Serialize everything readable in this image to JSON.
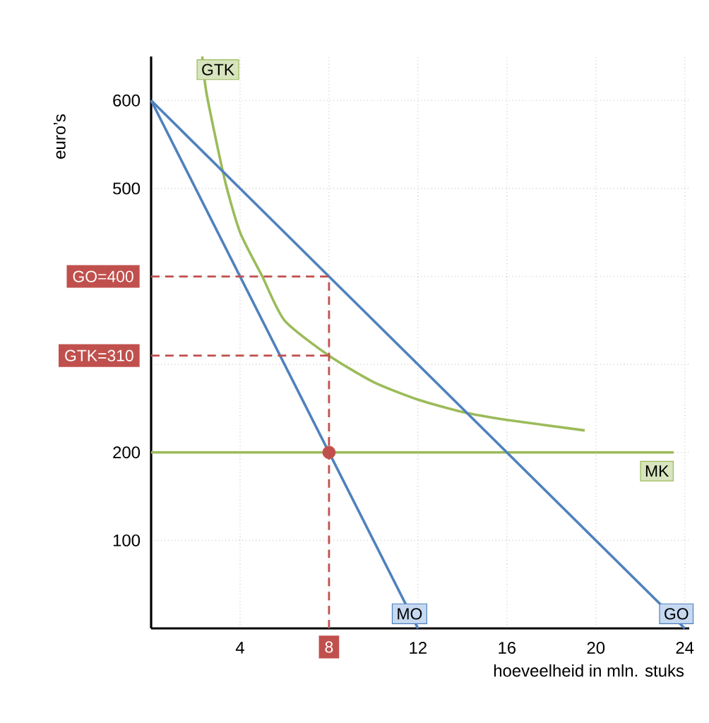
{
  "chart_data": {
    "type": "line",
    "xlabel": "hoeveelheid in mln. stuks",
    "ylabel": "euro’s",
    "xlim": [
      0,
      24.2
    ],
    "ylim": [
      0,
      650
    ],
    "xticks": [
      4,
      {
        "value": 8,
        "label": null
      },
      12,
      16,
      20,
      24
    ],
    "yticks": [
      100,
      200,
      {
        "value": 300,
        "label": null
      },
      {
        "value": 400,
        "label": null
      },
      500,
      600
    ],
    "grid": true,
    "marker": "none",
    "series": [
      {
        "name": "GTK",
        "color": "#9bbb59",
        "x": [
          2.3,
          2.5,
          3.3,
          4,
          5,
          6,
          8,
          10,
          12,
          14,
          16,
          19.5
        ],
        "values": [
          650,
          607,
          511,
          450,
          400,
          350,
          310,
          280,
          260,
          246,
          237,
          225
        ]
      },
      {
        "name": "MK",
        "color": "#9bbb59",
        "x": [
          0,
          23.5
        ],
        "values": [
          200,
          200
        ]
      },
      {
        "name": "GO",
        "color": "#4f81bd",
        "x": [
          0,
          24
        ],
        "values": [
          600,
          0
        ]
      },
      {
        "name": "MO",
        "color": "#4f81bd",
        "x": [
          0,
          12
        ],
        "values": [
          600,
          0
        ]
      },
      {
        "type": "scatter",
        "color": "#c0504d",
        "marker": "circle",
        "x": [
          8
        ],
        "values": [
          200
        ]
      }
    ],
    "ref_lines": [
      {
        "axis": "y",
        "value": 400,
        "label": "GO=400",
        "color": "#c0504d",
        "line_style": "dashed"
      },
      {
        "axis": "y",
        "value": 310,
        "label": "GTK=310",
        "color": "#c0504d",
        "line_style": "dashed"
      },
      {
        "axis": "x",
        "value": 8,
        "label": "8",
        "color": "#c0504d",
        "line_style": "dashed"
      }
    ]
  }
}
